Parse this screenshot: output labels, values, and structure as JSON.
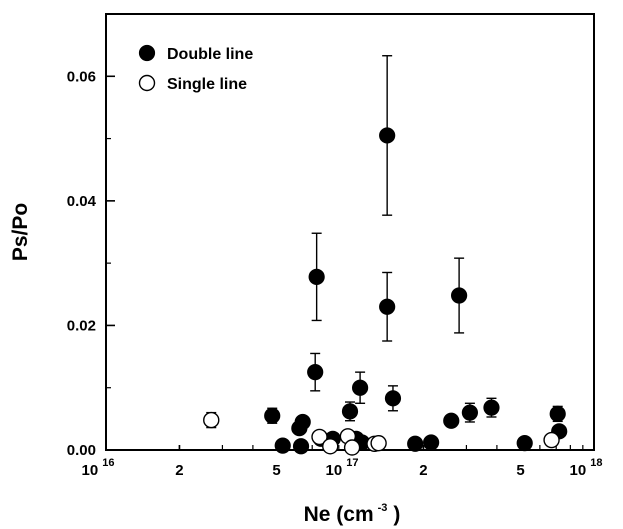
{
  "chart_data": {
    "type": "scatter",
    "xscale": "log",
    "xlim": [
      1e+16,
      1e+18
    ],
    "ylim": [
      0,
      0.07
    ],
    "xlabel": "Ne (cm",
    "xlabel_exp": "-3",
    "xlabel_close": ")",
    "ylabel": "Ps/Po",
    "x_ticks": [
      {
        "value": 1e+16,
        "mantissa": "10",
        "exp": "16"
      },
      {
        "value": 2e+16,
        "mantissa": "2",
        "exp": ""
      },
      {
        "value": 5e+16,
        "mantissa": "5",
        "exp": ""
      },
      {
        "value": 1e+17,
        "mantissa": "10",
        "exp": "17"
      },
      {
        "value": 2e+17,
        "mantissa": "2",
        "exp": ""
      },
      {
        "value": 5e+17,
        "mantissa": "5",
        "exp": ""
      },
      {
        "value": 1e+18,
        "mantissa": "10",
        "exp": "18"
      }
    ],
    "y_ticks": [
      {
        "value": 0.0,
        "label": "0.00"
      },
      {
        "value": 0.02,
        "label": "0.02"
      },
      {
        "value": 0.04,
        "label": "0.04"
      },
      {
        "value": 0.06,
        "label": "0.06"
      }
    ],
    "legend": {
      "position": "top-left"
    },
    "series": [
      {
        "name": "Double line",
        "marker": "filled-circle",
        "points": [
          {
            "x": 4.8e+16,
            "y": 0.0055,
            "err": 0.0012
          },
          {
            "x": 5.3e+16,
            "y": 0.0007
          },
          {
            "x": 6.2e+16,
            "y": 0.0035
          },
          {
            "x": 6.4e+16,
            "y": 0.0045
          },
          {
            "x": 6.3e+16,
            "y": 0.0006
          },
          {
            "x": 7.2e+16,
            "y": 0.0125,
            "err": 0.003
          },
          {
            "x": 7.3e+16,
            "y": 0.0278,
            "err": 0.007
          },
          {
            "x": 7.6e+16,
            "y": 0.0018
          },
          {
            "x": 8.5e+16,
            "y": 0.0018
          },
          {
            "x": 1e+17,
            "y": 0.0062,
            "err": 0.0015
          },
          {
            "x": 1.1e+17,
            "y": 0.01,
            "err": 0.0025
          },
          {
            "x": 1.06e+17,
            "y": 0.0018
          },
          {
            "x": 1.12e+17,
            "y": 0.0012
          },
          {
            "x": 1.42e+17,
            "y": 0.0505,
            "err": 0.0128
          },
          {
            "x": 1.42e+17,
            "y": 0.023,
            "err": 0.0055
          },
          {
            "x": 1.5e+17,
            "y": 0.0083,
            "err": 0.002
          },
          {
            "x": 1.85e+17,
            "y": 0.001
          },
          {
            "x": 2.15e+17,
            "y": 0.0012
          },
          {
            "x": 2.6e+17,
            "y": 0.0047
          },
          {
            "x": 2.8e+17,
            "y": 0.0248,
            "err": 0.006
          },
          {
            "x": 3.1e+17,
            "y": 0.006,
            "err": 0.0015
          },
          {
            "x": 3.8e+17,
            "y": 0.0068,
            "err": 0.0015
          },
          {
            "x": 5.2e+17,
            "y": 0.0011
          },
          {
            "x": 7.1e+17,
            "y": 0.0058,
            "err": 0.0012
          },
          {
            "x": 7.2e+17,
            "y": 0.003
          }
        ]
      },
      {
        "name": "Single line",
        "marker": "open-circle",
        "points": [
          {
            "x": 2.7e+16,
            "y": 0.0048,
            "err": 0.0012
          },
          {
            "x": 7.5e+16,
            "y": 0.0021
          },
          {
            "x": 8.3e+16,
            "y": 0.0006
          },
          {
            "x": 9.8e+16,
            "y": 0.0022
          },
          {
            "x": 1.02e+17,
            "y": 0.0004
          },
          {
            "x": 1.26e+17,
            "y": 0.001
          },
          {
            "x": 1.31e+17,
            "y": 0.0011
          },
          {
            "x": 6.7e+17,
            "y": 0.0016
          }
        ]
      }
    ]
  }
}
